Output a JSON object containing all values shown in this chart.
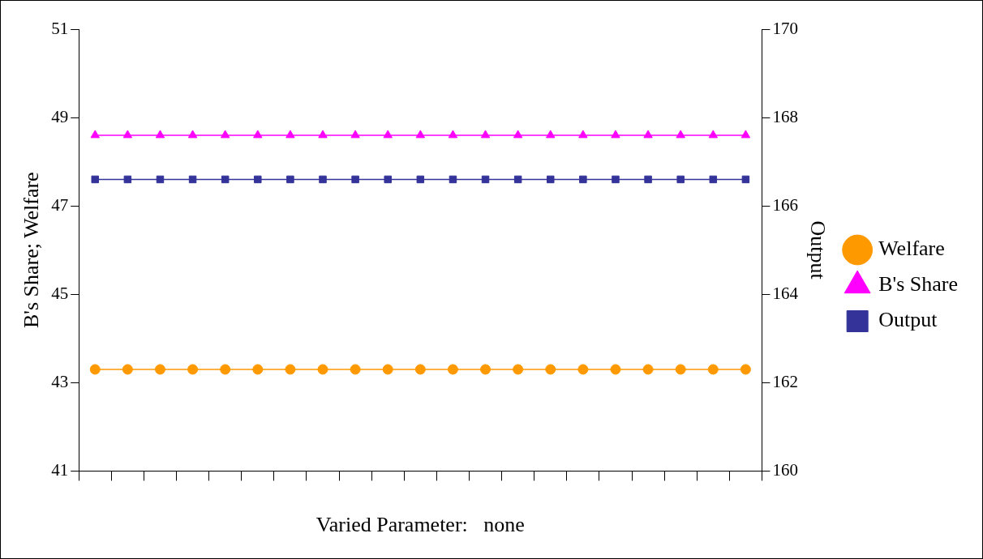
{
  "chart_data": {
    "type": "line",
    "xlabel": "Varied Parameter:   none",
    "ylabel": "B's Share; Welfare",
    "y2label": "Output",
    "categories": [
      null,
      null,
      null,
      null,
      null,
      null,
      null,
      null,
      null,
      null,
      null,
      null,
      null,
      null,
      null,
      null,
      null,
      null,
      null,
      null,
      null
    ],
    "series": [
      {
        "name": "Welfare",
        "color": "#ff9900",
        "marker": "circle",
        "values": [
          43.3,
          43.3,
          43.3,
          43.3,
          43.3,
          43.3,
          43.3,
          43.3,
          43.3,
          43.3,
          43.3,
          43.3,
          43.3,
          43.3,
          43.3,
          43.3,
          43.3,
          43.3,
          43.3,
          43.3,
          43.3
        ]
      },
      {
        "name": "B's Share",
        "color": "#ff00ff",
        "marker": "triangle",
        "values": [
          48.6,
          48.6,
          48.6,
          48.6,
          48.6,
          48.6,
          48.6,
          48.6,
          48.6,
          48.6,
          48.6,
          48.6,
          48.6,
          48.6,
          48.6,
          48.6,
          48.6,
          48.6,
          48.6,
          48.6,
          48.6
        ]
      },
      {
        "name": "Output",
        "color": "#333399",
        "marker": "square",
        "axis": "y2",
        "values": [
          166.6,
          166.6,
          166.6,
          166.6,
          166.6,
          166.6,
          166.6,
          166.6,
          166.6,
          166.6,
          166.6,
          166.6,
          166.6,
          166.6,
          166.6,
          166.6,
          166.6,
          166.6,
          166.6,
          166.6,
          166.6
        ]
      }
    ],
    "ylim": [
      41,
      51
    ],
    "yticks": [
      41,
      43,
      45,
      47,
      49,
      51
    ],
    "y2lim": [
      160,
      170
    ],
    "y2ticks": [
      160,
      162,
      164,
      166,
      168,
      170
    ],
    "grid": false,
    "legend": "right",
    "line_style": "solid"
  }
}
